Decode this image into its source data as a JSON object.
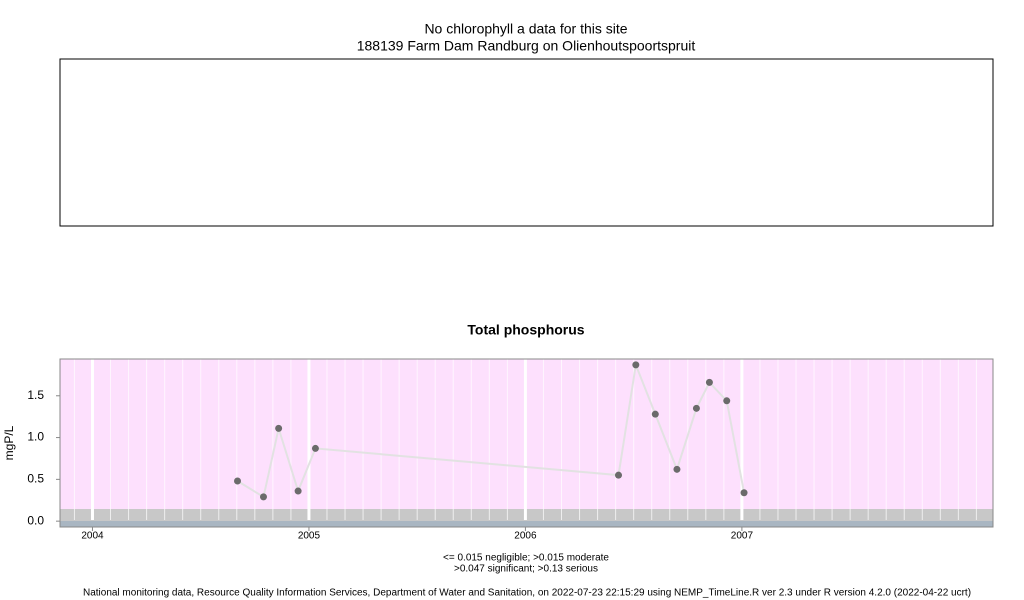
{
  "chart_data": [
    {
      "type": "empty",
      "title": "No chlorophyll a data for this site",
      "subtitle": "188139 Farm Dam Randburg on Olienhoutspoortspruit"
    },
    {
      "type": "line",
      "title": "Total phosphorus",
      "ylabel": "mgP/L",
      "x": [
        2004.67,
        2004.79,
        2004.86,
        2004.95,
        2005.03,
        2006.43,
        2006.51,
        2006.6,
        2006.7,
        2006.79,
        2006.85,
        2006.93,
        2007.01
      ],
      "values": [
        0.48,
        0.29,
        1.11,
        0.36,
        0.87,
        0.55,
        1.87,
        1.28,
        0.62,
        1.35,
        1.66,
        1.44,
        0.34
      ],
      "color": "#6b6b6b",
      "line_color": "#e2e2e2",
      "xlim": [
        2003.85,
        2008.16
      ],
      "xticks": [
        2004,
        2005,
        2006,
        2007
      ],
      "ylim": [
        -0.07,
        1.94
      ],
      "yticks": [
        {
          "value": 0,
          "label": "0.0"
        },
        0.5,
        {
          "value": 1,
          "label": "1.0"
        },
        1.5
      ],
      "grid": true,
      "notes": [
        "<= 0.015 negligible; >0.015 moderate",
        ">0.047 significant; >0.13 serious"
      ]
    }
  ],
  "footer": "National monitoring data, Resource Quality Information Services, Department of Water and Sanitation, on 2022-07-23 22:15:29 using NEMP_TimeLine.R ver 2.3 under R version 4.2.0 (2022-04-22 ucrt)"
}
